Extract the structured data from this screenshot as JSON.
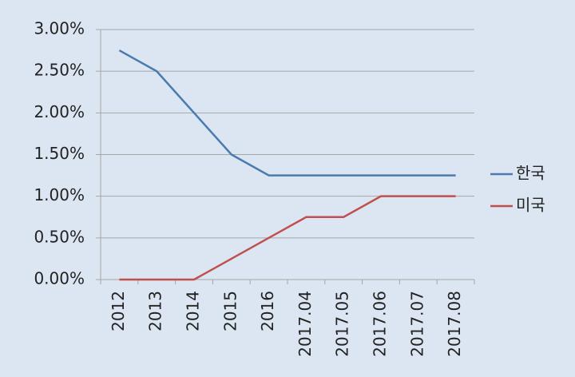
{
  "chart_data": {
    "type": "line",
    "categories": [
      "2012",
      "2013",
      "2014",
      "2015",
      "2016",
      "2017.04",
      "2017.05",
      "2017.06",
      "2017.07",
      "2017.08"
    ],
    "series": [
      {
        "name": "한국",
        "color": "#4a7bb0",
        "values": [
          2.75,
          2.5,
          2.0,
          1.5,
          1.25,
          1.25,
          1.25,
          1.25,
          1.25,
          1.25
        ]
      },
      {
        "name": "미국",
        "color": "#c0504d",
        "values": [
          0,
          0,
          0,
          0.25,
          0.5,
          0.75,
          0.75,
          1.0,
          1.0,
          1.0
        ]
      }
    ],
    "ylim": [
      0,
      3
    ],
    "yticks": [
      {
        "value": 0,
        "label": "0.00%"
      },
      {
        "value": 0.5,
        "label": "0.50%"
      },
      {
        "value": 1,
        "label": "1.00%"
      },
      {
        "value": 1.5,
        "label": "1.50%"
      },
      {
        "value": 2,
        "label": "2.00%"
      },
      {
        "value": 2.5,
        "label": "2.50%"
      },
      {
        "value": 3,
        "label": "3.00%"
      }
    ],
    "grid": true,
    "legend": "right"
  }
}
